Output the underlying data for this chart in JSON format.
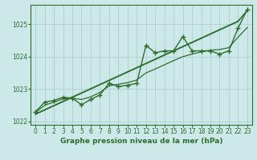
{
  "x": [
    0,
    1,
    2,
    3,
    4,
    5,
    6,
    7,
    8,
    9,
    10,
    11,
    12,
    13,
    14,
    15,
    16,
    17,
    18,
    19,
    20,
    21,
    22,
    23
  ],
  "pressure_main": [
    1022.3,
    1022.6,
    1022.65,
    1022.75,
    1022.72,
    1022.52,
    1022.68,
    1022.82,
    1023.18,
    1023.08,
    1023.12,
    1023.18,
    1024.35,
    1024.12,
    1024.18,
    1024.18,
    1024.62,
    1024.18,
    1024.18,
    1024.18,
    1024.08,
    1024.18,
    1024.88,
    1025.45
  ],
  "pressure_trend1": [
    1022.22,
    1022.35,
    1022.48,
    1022.61,
    1022.74,
    1022.87,
    1023.0,
    1023.13,
    1023.26,
    1023.39,
    1023.52,
    1023.65,
    1023.78,
    1023.91,
    1024.04,
    1024.17,
    1024.3,
    1024.43,
    1024.56,
    1024.69,
    1024.82,
    1024.95,
    1025.08,
    1025.42
  ],
  "pressure_trend2": [
    1022.24,
    1022.37,
    1022.5,
    1022.63,
    1022.76,
    1022.89,
    1023.02,
    1023.15,
    1023.28,
    1023.41,
    1023.54,
    1023.67,
    1023.8,
    1023.93,
    1024.06,
    1024.19,
    1024.32,
    1024.45,
    1024.58,
    1024.71,
    1024.84,
    1024.97,
    1025.1,
    1025.43
  ],
  "pressure_smooth": [
    1022.28,
    1022.5,
    1022.6,
    1022.7,
    1022.72,
    1022.68,
    1022.76,
    1022.9,
    1023.1,
    1023.15,
    1023.2,
    1023.28,
    1023.5,
    1023.62,
    1023.75,
    1023.88,
    1024.0,
    1024.08,
    1024.15,
    1024.2,
    1024.22,
    1024.28,
    1024.6,
    1024.9
  ],
  "ylim": [
    1021.9,
    1025.6
  ],
  "yticks": [
    1022,
    1023,
    1024,
    1025
  ],
  "xlim": [
    -0.5,
    23.5
  ],
  "xticks": [
    0,
    1,
    2,
    3,
    4,
    5,
    6,
    7,
    8,
    9,
    10,
    11,
    12,
    13,
    14,
    15,
    16,
    17,
    18,
    19,
    20,
    21,
    22,
    23
  ],
  "xlabel": "Graphe pression niveau de la mer (hPa)",
  "line_color": "#2d6e2d",
  "bg_color": "#cce8e8",
  "grid_color": "#a8cccc",
  "marker": "+",
  "marker_size": 4,
  "linewidth": 1.0,
  "xlabel_fontsize": 6.5,
  "tick_fontsize": 5.5
}
